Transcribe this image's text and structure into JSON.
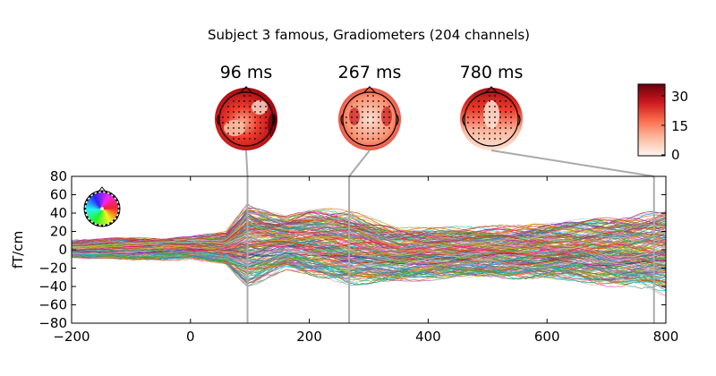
{
  "chart_data": {
    "type": "line",
    "title": "Subject 3 famous, Gradiometers (204 channels)",
    "xlabel": "",
    "ylabel": "fT/cm",
    "xlim": [
      -200,
      800
    ],
    "ylim": [
      -80,
      80
    ],
    "x_ticks": [
      -200,
      0,
      200,
      400,
      600,
      800
    ],
    "y_ticks": [
      80,
      60,
      40,
      20,
      0,
      -20,
      -40,
      -60,
      -80
    ],
    "grid": false,
    "n_channels": 204,
    "topomap_times": [
      {
        "label": "96 ms",
        "time": 96
      },
      {
        "label": "267 ms",
        "time": 267
      },
      {
        "label": "780 ms",
        "time": 780
      }
    ],
    "colorbar": {
      "ticks": [
        30,
        15,
        0
      ],
      "range": [
        0,
        36
      ],
      "colormap": "Reds"
    },
    "envelope": {
      "description_times": [
        -200,
        -100,
        0,
        60,
        96,
        120,
        160,
        200,
        267,
        350,
        450,
        550,
        650,
        750,
        800
      ],
      "upper": [
        10,
        12,
        13,
        18,
        48,
        42,
        35,
        40,
        40,
        22,
        22,
        25,
        30,
        35,
        42
      ],
      "lower": [
        -8,
        -10,
        -10,
        -15,
        -35,
        -30,
        -18,
        -25,
        -35,
        -32,
        -28,
        -30,
        -32,
        -38,
        -45
      ]
    }
  },
  "legend": {
    "type": "sensor-color-head",
    "placement": "top-left"
  },
  "colors": {
    "axis": "#000000",
    "time_marker": "#aaaaaa",
    "cbar_dark": "#67000d",
    "cbar_mid": "#ef3b2c",
    "cbar_light": "#fff5f0"
  }
}
